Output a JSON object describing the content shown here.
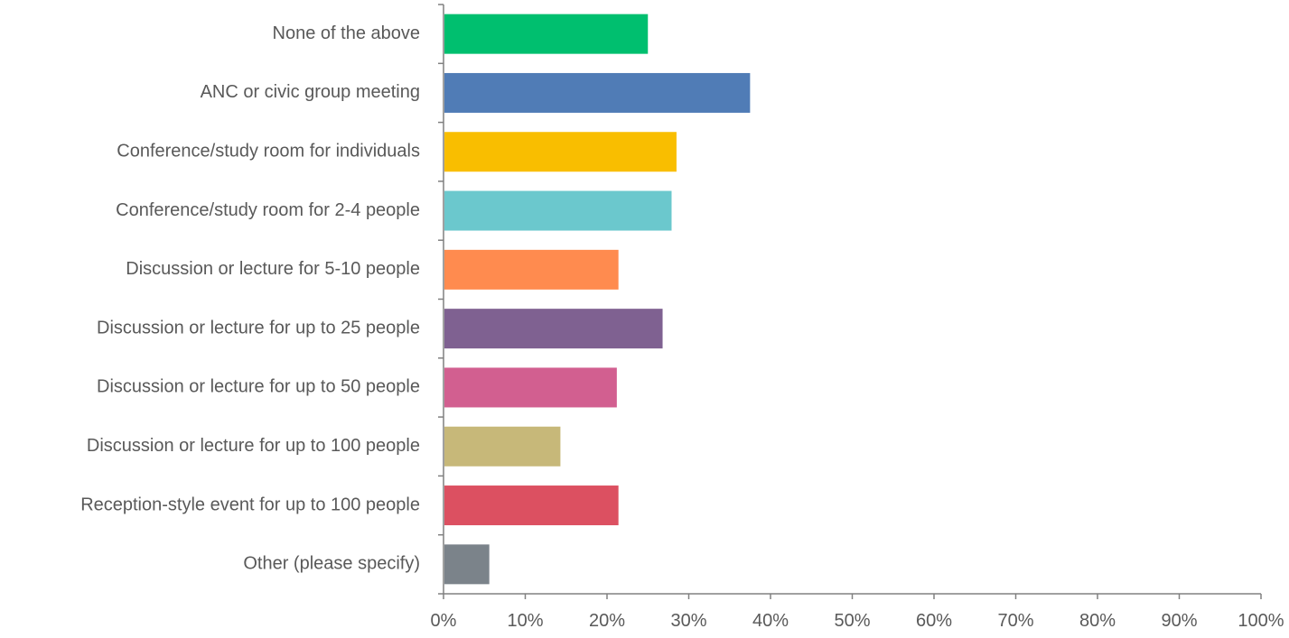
{
  "chart_data": {
    "type": "bar",
    "orientation": "horizontal",
    "title": "",
    "xlabel": "",
    "ylabel": "",
    "xlim": [
      0,
      100
    ],
    "value_unit": "%",
    "grid": false,
    "legend": "none",
    "categories": [
      "None of the above",
      "ANC or civic group meeting",
      "Conference/study room for individuals",
      "Conference/study room for 2-4 people",
      "Discussion or lecture for 5-10 people",
      "Discussion or lecture for up to 25 people",
      "Discussion or lecture for up to 50 people",
      "Discussion or lecture for up to 100 people",
      "Reception-style event for up to 100 people",
      "Other (please specify)"
    ],
    "values": [
      25,
      37.5,
      28.5,
      27.9,
      21.4,
      26.8,
      21.2,
      14.3,
      21.4,
      5.6
    ],
    "colors": [
      "#00bf6f",
      "#507cb6",
      "#f9be00",
      "#6bc8cd",
      "#ff8b4f",
      "#7f6191",
      "#d25f90",
      "#c7b879",
      "#dc5061",
      "#7b838a"
    ],
    "x_ticks": [
      "0%",
      "10%",
      "20%",
      "30%",
      "40%",
      "50%",
      "60%",
      "70%",
      "80%",
      "90%",
      "100%"
    ]
  }
}
